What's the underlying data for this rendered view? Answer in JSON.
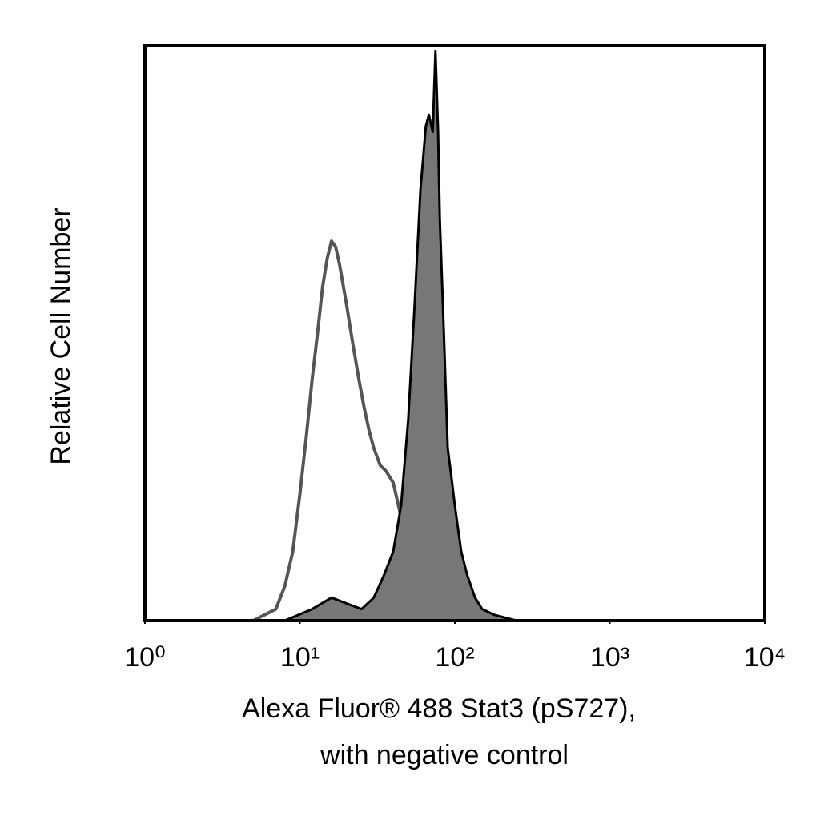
{
  "chart_data": {
    "type": "histogram-overlay",
    "ylabel": "Relative Cell Number",
    "xlabel": [
      "Alexa Fluor® 488 Stat3 (pS727),",
      "with negative control"
    ],
    "log_x": true,
    "xlim": [
      1,
      10000
    ],
    "ylim": [
      0,
      100
    ],
    "xticks": [
      {
        "value": 1,
        "label": "10⁰"
      },
      {
        "value": 10,
        "label": "10¹"
      },
      {
        "value": 100,
        "label": "10²"
      },
      {
        "value": 1000,
        "label": "10³"
      },
      {
        "value": 10000,
        "label": "10⁴"
      }
    ],
    "series": [
      {
        "color": "#555555",
        "filled": false,
        "x": [
          5,
          7,
          8,
          9,
          10,
          11,
          12,
          13,
          14,
          15,
          16,
          17,
          18,
          20,
          22,
          24,
          26,
          28,
          30,
          33,
          36,
          40,
          45,
          50,
          56
        ],
        "values": [
          0,
          2,
          6,
          12,
          22,
          32,
          42,
          50,
          58,
          63,
          66,
          65,
          62,
          55,
          48,
          42,
          37,
          33,
          30,
          27,
          26,
          24,
          18,
          8,
          0
        ]
      },
      {
        "color": "#777777",
        "filled": true,
        "x": [
          8,
          12,
          16,
          20,
          25,
          30,
          35,
          40,
          45,
          50,
          55,
          60,
          65,
          68,
          72,
          75,
          78,
          80,
          85,
          90,
          95,
          100,
          110,
          120,
          135,
          150,
          180,
          250
        ],
        "values": [
          0,
          2,
          4,
          3,
          2,
          4,
          8,
          12,
          20,
          35,
          55,
          75,
          86,
          88,
          85,
          99,
          85,
          70,
          50,
          30,
          25,
          20,
          12,
          8,
          4,
          2,
          1,
          0
        ]
      }
    ]
  }
}
